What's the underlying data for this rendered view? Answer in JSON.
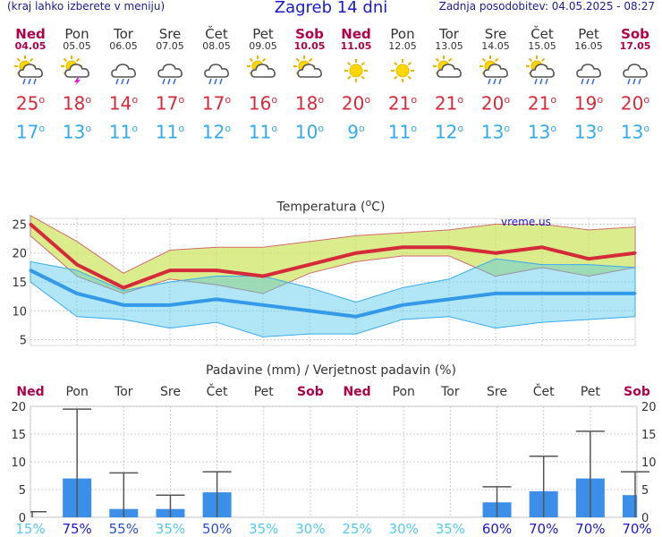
{
  "header": {
    "note": "(kraj lahko izberete v meniju)",
    "title": "Zagreb 14 dni",
    "updated": "Zadnja posodobitev: 04.05.2025 - 08:27"
  },
  "days": [
    {
      "name": "Ned",
      "date": "04.05",
      "max": "25",
      "min": "17",
      "weekend": true,
      "icon": "sun-cloud-rain-icon"
    },
    {
      "name": "Pon",
      "date": "05.05",
      "max": "18",
      "min": "13",
      "weekend": false,
      "icon": "sun-cloud-thunder-icon"
    },
    {
      "name": "Tor",
      "date": "06.05",
      "max": "14",
      "min": "11",
      "weekend": false,
      "icon": "cloud-rain-icon"
    },
    {
      "name": "Sre",
      "date": "07.05",
      "max": "17",
      "min": "11",
      "weekend": false,
      "icon": "cloud-rain-icon"
    },
    {
      "name": "Čet",
      "date": "08.05",
      "max": "17",
      "min": "12",
      "weekend": false,
      "icon": "cloud-rain-icon"
    },
    {
      "name": "Pet",
      "date": "09.05",
      "max": "16",
      "min": "11",
      "weekend": false,
      "icon": "sun-cloud-icon"
    },
    {
      "name": "Sob",
      "date": "10.05",
      "max": "18",
      "min": "10",
      "weekend": true,
      "icon": "sun-cloud-icon"
    },
    {
      "name": "Ned",
      "date": "11.05",
      "max": "20",
      "min": "9",
      "weekend": true,
      "icon": "sun-icon"
    },
    {
      "name": "Pon",
      "date": "12.05",
      "max": "21",
      "min": "11",
      "weekend": false,
      "icon": "sun-icon"
    },
    {
      "name": "Tor",
      "date": "13.05",
      "max": "21",
      "min": "12",
      "weekend": false,
      "icon": "sun-cloud-icon"
    },
    {
      "name": "Sre",
      "date": "14.05",
      "max": "20",
      "min": "13",
      "weekend": false,
      "icon": "sun-cloud-rain-icon"
    },
    {
      "name": "Čet",
      "date": "15.05",
      "max": "21",
      "min": "13",
      "weekend": false,
      "icon": "sun-cloud-rain-icon"
    },
    {
      "name": "Pet",
      "date": "16.05",
      "max": "19",
      "min": "13",
      "weekend": false,
      "icon": "cloud-rain-icon"
    },
    {
      "name": "Sob",
      "date": "17.05",
      "max": "20",
      "min": "13",
      "weekend": true,
      "icon": "cloud-rain-icon"
    }
  ],
  "degree_symbol": "o",
  "colors": {
    "max": "#d42a3a",
    "min": "#33aaee",
    "weekend": "#b0004a",
    "bar": "#3b8fe8",
    "title": "#1a1acc"
  },
  "chart_data": [
    {
      "type": "line",
      "title": "Temperatura (°C)",
      "watermark": "vreme.us",
      "ylim": [
        4,
        26
      ],
      "yticks": [
        5,
        10,
        15,
        20,
        25
      ],
      "grid": true,
      "x": [
        "04.05",
        "05.05",
        "06.05",
        "07.05",
        "08.05",
        "09.05",
        "10.05",
        "11.05",
        "12.05",
        "13.05",
        "14.05",
        "15.05",
        "16.05",
        "17.05"
      ],
      "series": [
        {
          "role": "max",
          "values": [
            25,
            18,
            14,
            17,
            17,
            16,
            18,
            20,
            21,
            21,
            20,
            21,
            19,
            20
          ]
        },
        {
          "role": "min",
          "values": [
            17,
            13,
            11,
            11,
            12,
            11,
            10,
            9,
            11,
            12,
            13,
            13,
            13,
            13
          ]
        },
        {
          "role": "max-range-high",
          "values": [
            26.5,
            22,
            16.5,
            20.5,
            21,
            21,
            22,
            23,
            23.5,
            24,
            25,
            25,
            24,
            24.5
          ]
        },
        {
          "role": "max-range-low",
          "values": [
            23,
            16,
            13,
            15.5,
            14.5,
            13,
            16.5,
            18.5,
            19.5,
            19.5,
            16,
            17.5,
            16,
            17.5
          ]
        },
        {
          "role": "min-range-high",
          "values": [
            18.5,
            17,
            13.5,
            15,
            16,
            16,
            14,
            11.5,
            14,
            15.5,
            19,
            18,
            18,
            17.5
          ]
        },
        {
          "role": "min-range-low",
          "values": [
            15,
            9,
            8.5,
            7,
            8,
            5.5,
            6,
            6,
            8.5,
            9,
            7,
            8,
            8.5,
            9
          ]
        }
      ]
    },
    {
      "type": "bar",
      "title": "Padavine (mm) / Verjetnost padavin (%)",
      "ylim": [
        0,
        20
      ],
      "yticks": [
        0,
        5,
        10,
        15,
        20
      ],
      "grid": true,
      "categories": [
        "Ned",
        "Pon",
        "Tor",
        "Sre",
        "Čet",
        "Pet",
        "Sob",
        "Ned",
        "Pon",
        "Tor",
        "Sre",
        "Čet",
        "Pet",
        "Sob"
      ],
      "weekend": [
        true,
        false,
        false,
        false,
        false,
        false,
        true,
        true,
        false,
        false,
        false,
        false,
        false,
        true
      ],
      "values": [
        0,
        7,
        1.5,
        1.5,
        4.5,
        0,
        0,
        0,
        0,
        0,
        2.7,
        4.7,
        7,
        4
      ],
      "error_high": [
        1,
        19.5,
        8,
        4,
        8.2,
        0,
        0,
        0,
        0,
        0,
        5.5,
        11,
        15.5,
        8.2
      ],
      "error_low": [
        0,
        0,
        0,
        0,
        0,
        0,
        0,
        0,
        0,
        0,
        0,
        0,
        0,
        0
      ],
      "probability": [
        "15%",
        "75%",
        "55%",
        "35%",
        "50%",
        "35%",
        "30%",
        "25%",
        "30%",
        "35%",
        "60%",
        "70%",
        "70%",
        "70%"
      ]
    }
  ]
}
